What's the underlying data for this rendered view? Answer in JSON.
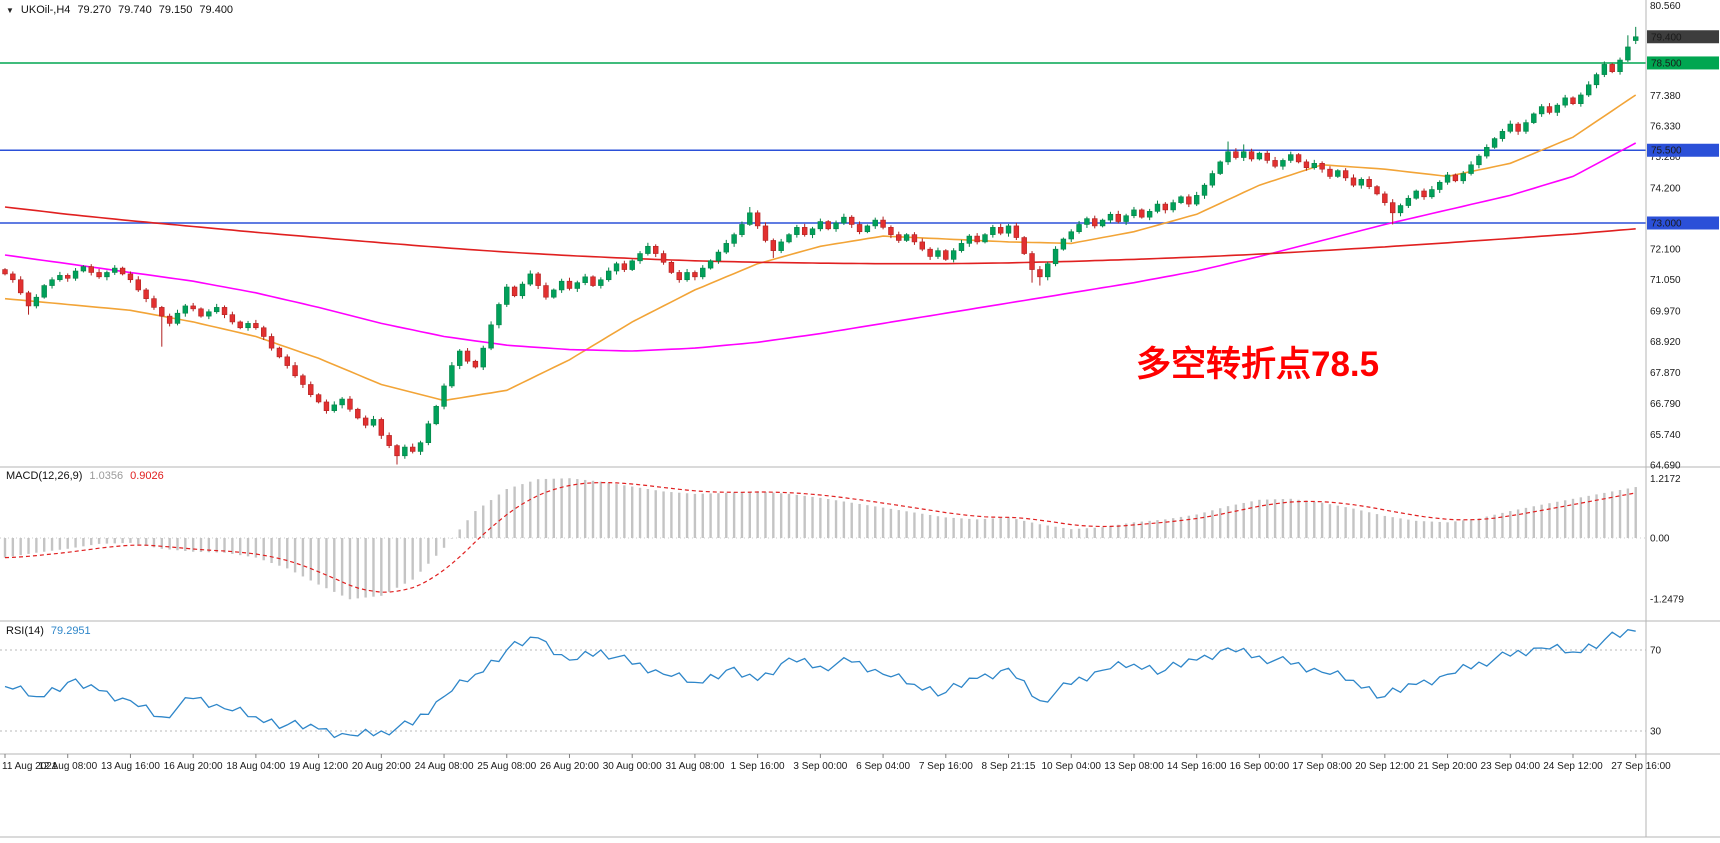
{
  "window": {
    "symbol": "UKOil-,H4",
    "open": "79.270",
    "high": "79.740",
    "low": "79.150",
    "close": "79.400",
    "dropdown_icon": "▼"
  },
  "indicators": {
    "macd": {
      "label": "MACD(12,26,9)",
      "main_value": "1.0356",
      "signal_value": "0.9026"
    },
    "rsi": {
      "label": "RSI(14)",
      "value": "79.2951"
    }
  },
  "annotation": {
    "text": "多空转折点78.5",
    "color": "#ff0000"
  },
  "colors": {
    "bg": "#ffffff",
    "up": "#00a05a",
    "up_border": "#058246",
    "down": "#e23030",
    "down_border": "#b02020",
    "ma_fast": "#f2a437",
    "ma_mid": "#ff00ff",
    "ma_slow": "#e02020",
    "macd_hist": "#c4c4c4",
    "macd_signal": "#e02020",
    "rsi_line": "#2e86c9",
    "level_dotted": "#b8b8b8",
    "hline_green": "#00a651",
    "hline_blue": "#2b50d8",
    "price_box": "#3d3d3d",
    "separator": "#b6b6b6",
    "text": "#1a1a1a"
  },
  "chart_data": {
    "type": "candlestick",
    "symbol": "UKOil-",
    "timeframe": "H4",
    "title": "UKOil- H4 with MACD(12,26,9) and RSI(14)",
    "ohlc_last": {
      "open": 79.27,
      "high": 79.74,
      "low": 79.15,
      "close": 79.4
    },
    "price_axis": {
      "min": 64.69,
      "max": 80.56,
      "labels": [
        80.56,
        77.38,
        76.33,
        75.28,
        74.2,
        72.1,
        71.05,
        69.97,
        68.92,
        67.87,
        66.79,
        65.74,
        64.69
      ]
    },
    "time_labels": [
      "11 Aug 2021",
      "12 Aug 08:00",
      "13 Aug 16:00",
      "16 Aug 20:00",
      "18 Aug 04:00",
      "19 Aug 12:00",
      "20 Aug 20:00",
      "24 Aug 08:00",
      "25 Aug 08:00",
      "26 Aug 20:00",
      "30 Aug 00:00",
      "31 Aug 08:00",
      "1 Sep 16:00",
      "3 Sep 00:00",
      "6 Sep 04:00",
      "7 Sep 16:00",
      "8 Sep 21:15",
      "10 Sep 04:00",
      "13 Sep 08:00",
      "14 Sep 16:00",
      "16 Sep 00:00",
      "17 Sep 08:00",
      "20 Sep 12:00",
      "21 Sep 20:00",
      "23 Sep 04:00",
      "24 Sep 12:00",
      "27 Sep 16:00"
    ],
    "candles_per_label": 8,
    "closes": [
      71.25,
      71.05,
      70.6,
      70.15,
      70.45,
      70.85,
      71.05,
      71.2,
      71.1,
      71.35,
      71.5,
      71.3,
      71.15,
      71.3,
      71.45,
      71.25,
      71.05,
      70.7,
      70.4,
      70.1,
      69.8,
      69.55,
      69.9,
      70.15,
      70.05,
      69.8,
      69.95,
      70.1,
      69.85,
      69.6,
      69.4,
      69.55,
      69.4,
      69.1,
      68.7,
      68.4,
      68.1,
      67.75,
      67.45,
      67.1,
      66.85,
      66.55,
      66.75,
      66.95,
      66.6,
      66.3,
      66.05,
      66.25,
      65.7,
      65.35,
      65.0,
      65.3,
      65.15,
      65.45,
      66.1,
      66.7,
      67.4,
      68.1,
      68.6,
      68.25,
      68.05,
      68.7,
      69.5,
      70.2,
      70.8,
      70.5,
      70.9,
      71.25,
      70.85,
      70.45,
      70.7,
      71.0,
      70.75,
      70.95,
      71.15,
      70.85,
      71.05,
      71.35,
      71.6,
      71.4,
      71.7,
      71.95,
      72.2,
      71.95,
      71.65,
      71.3,
      71.05,
      71.3,
      71.15,
      71.45,
      71.7,
      72.0,
      72.3,
      72.6,
      72.95,
      73.35,
      72.9,
      72.4,
      72.05,
      72.35,
      72.6,
      72.85,
      72.6,
      72.8,
      73.05,
      72.8,
      73.0,
      73.2,
      72.95,
      72.7,
      72.9,
      73.1,
      72.85,
      72.6,
      72.4,
      72.6,
      72.35,
      72.1,
      71.85,
      72.05,
      71.75,
      72.05,
      72.3,
      72.55,
      72.35,
      72.6,
      72.85,
      72.65,
      72.9,
      72.5,
      71.95,
      71.4,
      71.15,
      71.6,
      72.1,
      72.45,
      72.7,
      72.95,
      73.15,
      72.9,
      73.1,
      73.3,
      73.05,
      73.25,
      73.45,
      73.2,
      73.4,
      73.65,
      73.45,
      73.7,
      73.9,
      73.65,
      73.95,
      74.3,
      74.7,
      75.1,
      75.45,
      75.25,
      75.45,
      75.2,
      75.4,
      75.15,
      74.95,
      75.15,
      75.35,
      75.1,
      74.9,
      75.05,
      74.85,
      74.6,
      74.8,
      74.55,
      74.3,
      74.5,
      74.25,
      74.0,
      73.7,
      73.35,
      73.6,
      73.85,
      74.1,
      73.9,
      74.15,
      74.4,
      74.65,
      74.45,
      74.7,
      75.0,
      75.3,
      75.6,
      75.9,
      76.15,
      76.4,
      76.15,
      76.45,
      76.75,
      77.0,
      76.8,
      77.05,
      77.3,
      77.1,
      77.4,
      77.75,
      78.1,
      78.45,
      78.2,
      78.6,
      79.05,
      79.4
    ],
    "wick_overrides": {
      "3": {
        "l": 69.85
      },
      "20": {
        "l": 68.75
      },
      "50": {
        "l": 64.7
      },
      "95": {
        "h": 73.55
      },
      "98": {
        "l": 71.8
      },
      "131": {
        "l": 70.95
      },
      "132": {
        "l": 70.85
      },
      "156": {
        "h": 75.8
      },
      "158": {
        "h": 75.7
      },
      "177": {
        "l": 72.95
      },
      "207": {
        "h": 79.45
      },
      "208": {
        "o": 79.27,
        "h": 79.74,
        "l": 79.15
      }
    },
    "ma_lines": [
      {
        "name": "ma-orange",
        "color_key": "ma_fast",
        "sample_step": 8,
        "values": [
          70.4,
          70.2,
          70.0,
          69.6,
          69.1,
          68.35,
          67.45,
          66.9,
          67.25,
          68.3,
          69.6,
          70.7,
          71.6,
          72.2,
          72.55,
          72.45,
          72.35,
          72.3,
          72.7,
          73.3,
          74.3,
          75.0,
          74.85,
          74.6,
          75.05,
          75.95,
          77.4
        ]
      },
      {
        "name": "ma-magenta",
        "color_key": "ma_mid",
        "sample_step": 8,
        "values": [
          71.9,
          71.6,
          71.3,
          71.0,
          70.6,
          70.1,
          69.55,
          69.1,
          68.8,
          68.65,
          68.6,
          68.7,
          68.9,
          69.2,
          69.55,
          69.9,
          70.25,
          70.6,
          70.95,
          71.35,
          71.85,
          72.4,
          72.95,
          73.45,
          73.95,
          74.6,
          75.75
        ]
      },
      {
        "name": "ma-red",
        "color_key": "ma_slow",
        "sample_step": 8,
        "values": [
          73.55,
          73.3,
          73.08,
          72.88,
          72.68,
          72.5,
          72.32,
          72.15,
          72.0,
          71.88,
          71.78,
          71.7,
          71.65,
          71.62,
          71.6,
          71.6,
          71.63,
          71.68,
          71.75,
          71.83,
          71.93,
          72.05,
          72.18,
          72.32,
          72.47,
          72.62,
          72.8
        ]
      }
    ],
    "hlines": [
      {
        "price": 78.5,
        "label": "78.500",
        "color_key": "hline_green"
      },
      {
        "price": 75.5,
        "label": "75.500",
        "color_key": "hline_blue"
      },
      {
        "price": 73.0,
        "label": "73.000",
        "color_key": "hline_blue"
      }
    ],
    "current_price": {
      "value": 79.4,
      "label": "79.400",
      "box_color_key": "price_box"
    },
    "macd": {
      "params": "12,26,9",
      "sample_step": 4,
      "last_main": 1.0356,
      "last_signal": 0.9026,
      "axis_labels": [
        "1.2172",
        "0.00",
        "-1.2479"
      ],
      "values": [
        -0.4,
        -0.3,
        -0.22,
        -0.12,
        -0.1,
        -0.22,
        -0.28,
        -0.3,
        -0.4,
        -0.62,
        -0.95,
        -1.25,
        -1.18,
        -0.85,
        -0.2,
        0.55,
        1.0,
        1.2,
        1.22,
        1.15,
        1.05,
        0.95,
        0.9,
        0.92,
        0.95,
        0.9,
        0.82,
        0.72,
        0.62,
        0.52,
        0.42,
        0.38,
        0.42,
        0.28,
        0.18,
        0.22,
        0.32,
        0.38,
        0.48,
        0.65,
        0.78,
        0.8,
        0.72,
        0.6,
        0.45,
        0.35,
        0.32,
        0.4,
        0.55,
        0.68,
        0.8,
        0.92,
        1.04
      ]
    },
    "rsi": {
      "period": 14,
      "sample_step": 4,
      "last": 79.2951,
      "levels": [
        70,
        30
      ],
      "values": [
        52,
        47,
        54,
        50,
        45,
        37,
        46,
        41,
        37,
        33,
        31,
        28,
        30,
        33,
        47,
        58,
        70,
        76,
        65,
        70,
        63,
        58,
        54,
        60,
        55,
        66,
        62,
        64,
        58,
        53,
        49,
        56,
        61,
        45,
        53,
        60,
        63,
        60,
        65,
        71,
        67,
        63,
        59,
        55,
        47,
        53,
        58,
        64,
        67,
        71,
        69,
        75,
        79.3
      ]
    }
  }
}
